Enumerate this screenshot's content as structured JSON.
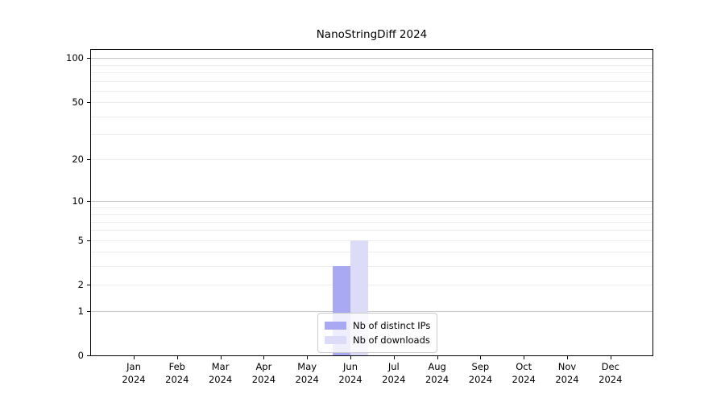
{
  "title": "NanoStringDiff 2024",
  "chart_data": {
    "type": "bar",
    "title": "NanoStringDiff 2024",
    "categories": [
      "Jan 2024",
      "Feb 2024",
      "Mar 2024",
      "Apr 2024",
      "May 2024",
      "Jun 2024",
      "Jul 2024",
      "Aug 2024",
      "Sep 2024",
      "Oct 2024",
      "Nov 2024",
      "Dec 2024"
    ],
    "series": [
      {
        "name": "Nb of distinct IPs",
        "color": "#a9a9f3",
        "values": [
          0,
          0,
          0,
          0,
          0,
          3,
          0,
          0,
          0,
          0,
          0,
          0
        ]
      },
      {
        "name": "Nb of downloads",
        "color": "#dcdcf8",
        "values": [
          0,
          0,
          0,
          0,
          0,
          5,
          0,
          0,
          0,
          0,
          0,
          0
        ]
      }
    ],
    "xlabel": "",
    "ylabel": "",
    "yscale": "log1p",
    "ylim": [
      0,
      113
    ],
    "y_tick_values": [
      0,
      1,
      2,
      5,
      10,
      20,
      50,
      100
    ],
    "grid_major_values": [
      1,
      10,
      100
    ],
    "grid_minor_values": [
      2,
      3,
      4,
      5,
      6,
      7,
      8,
      9,
      20,
      30,
      40,
      50,
      60,
      70,
      80,
      90
    ],
    "grid": "horizontal",
    "legend_position": "lower center"
  },
  "colors": {
    "bar_distinct_ips": "#a9a9f3",
    "bar_downloads": "#dcdcf8",
    "grid_major": "#c4c4c4",
    "grid_minor": "#ececec",
    "axis": "#000000",
    "legend_border": "#cccccc",
    "background": "#ffffff"
  }
}
